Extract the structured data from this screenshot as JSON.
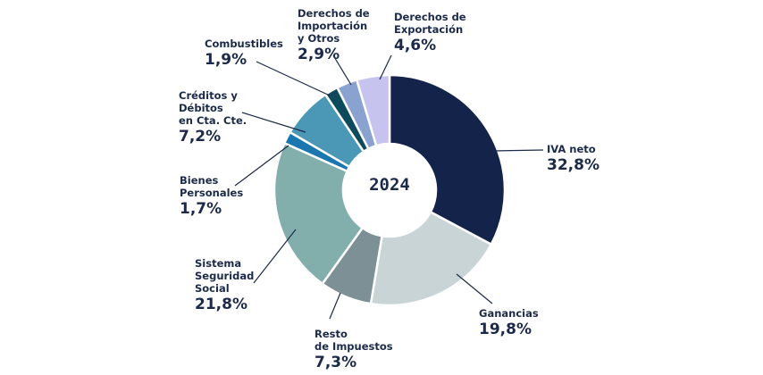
{
  "chart_data": {
    "type": "pie",
    "center_label": "2024",
    "slices": [
      {
        "name": "IVA neto",
        "value": 32.8,
        "label": "32,8%",
        "color": "#13234a"
      },
      {
        "name": "Ganancias",
        "value": 19.8,
        "label": "19,8%",
        "color": "#c8d4d6"
      },
      {
        "name": "Resto de Impuestos",
        "value": 7.3,
        "label": "7,3%",
        "color": "#7d9095"
      },
      {
        "name": "Sistema Seguridad Social",
        "value": 21.8,
        "label": "21,8%",
        "color": "#82aeac"
      },
      {
        "name": "Bienes Personales",
        "value": 1.7,
        "label": "1,7%",
        "color": "#1b77b0"
      },
      {
        "name": "Créditos y Débitos en Cta. Cte.",
        "value": 7.2,
        "label": "7,2%",
        "color": "#4a98b5"
      },
      {
        "name": "Combustibles",
        "value": 1.9,
        "label": "1,9%",
        "color": "#0d4b5c"
      },
      {
        "name": "Derechos de Importación y Otros",
        "value": 2.9,
        "label": "2,9%",
        "color": "#8aa2cf"
      },
      {
        "name": "Derechos de Exportación",
        "value": 4.6,
        "label": "4,6%",
        "color": "#c6c3ef"
      }
    ],
    "labels": {
      "iva": {
        "line1": "IVA neto",
        "pct": "32,8%"
      },
      "ganancias": {
        "line1": "Ganancias",
        "pct": "19,8%"
      },
      "resto": {
        "line1": "Resto",
        "line2": "de Impuestos",
        "pct": "7,3%"
      },
      "sss": {
        "line1": "Sistema",
        "line2": "Seguridad",
        "line3": "Social",
        "pct": "21,8%"
      },
      "bienes": {
        "line1": "Bienes",
        "line2": "Personales",
        "pct": "1,7%"
      },
      "creditos": {
        "line1": "Créditos y",
        "line2": "Débitos",
        "line3": "en Cta. Cte.",
        "pct": "7,2%"
      },
      "combustibles": {
        "line1": "Combustibles",
        "pct": "1,9%"
      },
      "importacion": {
        "line1": "Derechos de",
        "line2": "Importación",
        "line3": "y Otros",
        "pct": "2,9%"
      },
      "exportacion": {
        "line1": "Derechos de",
        "line2": "Exportación",
        "pct": "4,6%"
      }
    }
  }
}
